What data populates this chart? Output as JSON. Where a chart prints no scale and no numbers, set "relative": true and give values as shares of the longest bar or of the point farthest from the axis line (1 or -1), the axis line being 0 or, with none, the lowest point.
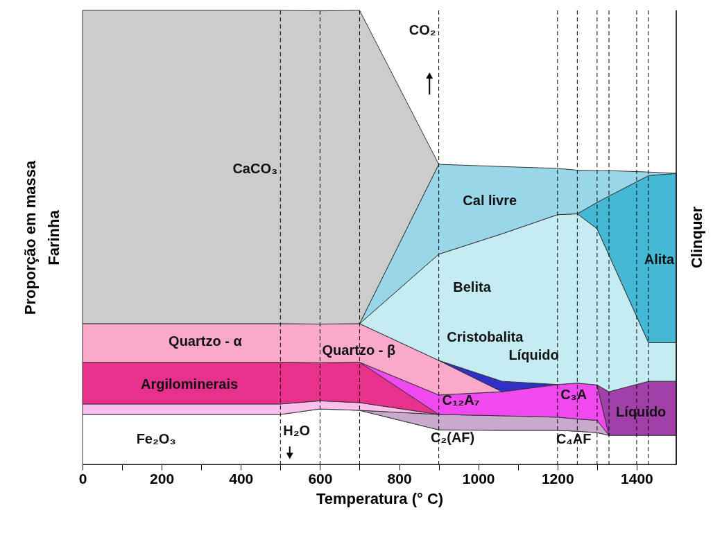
{
  "chart_data": {
    "type": "area",
    "stacked": true,
    "relative": true,
    "xlabel": "Temperatura (° C)",
    "ylabel": "Proporção em massa\nFarinha",
    "y2label": "Clinquer",
    "x": [
      0,
      500,
      600,
      700,
      900,
      1060,
      1200,
      1250,
      1300,
      1330,
      1430,
      1500
    ],
    "xlim": [
      0,
      1500
    ],
    "xticks": [
      0,
      {
        "value": 100,
        "label": null
      },
      200,
      {
        "value": 300,
        "label": null
      },
      400,
      {
        "value": 500,
        "label": null
      },
      600,
      {
        "value": 700,
        "label": null
      },
      800,
      {
        "value": 900,
        "label": null
      },
      1000,
      {
        "value": 1100,
        "label": null
      },
      1200,
      {
        "value": 1300,
        "label": null
      },
      1400
    ],
    "series": [
      {
        "color": "#ffffff",
        "values": [
          0.11,
          0.11,
          0.122,
          0.119,
          0.076,
          0.075,
          0.075,
          0.073,
          0.07,
          0.064,
          0.064,
          0.064
        ]
      },
      {
        "name": "C₂(AF)",
        "color": "#c9a9cc",
        "values": [
          null,
          null,
          null,
          0,
          0.034,
          0.032,
          0.029,
          0.027,
          0.027,
          0,
          null,
          null
        ]
      },
      {
        "name": "Fe₂O₃",
        "color": "#f9c0ec",
        "values": [
          0.023,
          0.023,
          0.018,
          0.017,
          0,
          null,
          null,
          null,
          null,
          null,
          null,
          null
        ]
      },
      {
        "name": "Argilominerais",
        "color": "#e8318c",
        "values": [
          0.092,
          0.092,
          0.084,
          0.089,
          0,
          null,
          null,
          null,
          null,
          null,
          null,
          null
        ]
      },
      {
        "name": "C₁₂A₇",
        "color": "#f049f0",
        "values": [
          null,
          null,
          null,
          0,
          0.043,
          0.053,
          0.072,
          0.079,
          0.078,
          0,
          null,
          null
        ]
      },
      {
        "name": "Líquido",
        "color": "#a040a8",
        "values": [
          null,
          null,
          null,
          null,
          null,
          null,
          null,
          null,
          0,
          0.096,
          0.119,
          0.119
        ]
      },
      {
        "name": "Quartzo - α",
        "color": "#f9a9c9",
        "values": [
          0.085,
          0.085,
          0.085,
          0.085,
          0.076,
          0,
          null,
          null,
          null,
          null,
          null,
          null
        ]
      },
      {
        "name": "Líquido",
        "color": "#3030c8",
        "values": [
          null,
          null,
          null,
          null,
          0,
          0.023,
          0,
          null,
          null,
          null,
          null,
          null
        ]
      },
      {
        "name": "Belita",
        "color": "#c5ecf3",
        "values": [
          null,
          null,
          null,
          0,
          0.234,
          0.325,
          0.374,
          0.373,
          0.344,
          0.301,
          0.085,
          0.085
        ]
      },
      {
        "name": "Alita",
        "color": "#45b8d5",
        "values": [
          null,
          null,
          null,
          null,
          null,
          null,
          null,
          0,
          0.058,
          0.13,
          0.368,
          0.373
        ]
      },
      {
        "name": "Cal livre",
        "color": "#99d7e8",
        "values": [
          null,
          null,
          null,
          0,
          0.198,
          0.148,
          0.102,
          0.096,
          0.07,
          0.056,
          0.008,
          0
        ]
      },
      {
        "name": "CaCO₃",
        "color": "#cccccc",
        "values": [
          0.69,
          0.69,
          0.69,
          0.69,
          0,
          null,
          null,
          null,
          null,
          null,
          null,
          null
        ]
      }
    ],
    "ref_lines": [
      {
        "axis": "x",
        "value": 500,
        "line_style": "dashed"
      },
      {
        "axis": "x",
        "value": 600,
        "line_style": "dashed"
      },
      {
        "axis": "x",
        "value": 700,
        "line_style": "dashed"
      },
      {
        "axis": "x",
        "value": 900,
        "line_style": "dashed"
      },
      {
        "axis": "x",
        "value": 1200,
        "line_style": "dashed"
      },
      {
        "axis": "x",
        "value": 1250,
        "line_style": "dashed"
      },
      {
        "axis": "x",
        "value": 1300,
        "line_style": "dashed"
      },
      {
        "axis": "x",
        "value": 1330,
        "line_style": "dashed"
      },
      {
        "axis": "x",
        "value": 1400,
        "line_style": "dashed"
      },
      {
        "axis": "x",
        "value": 1430,
        "line_style": "dashed"
      },
      {
        "axis": "x",
        "value": 1500,
        "line_style": "solid"
      }
    ],
    "annotations": [
      "Quartzo - β",
      "Cristobalita",
      "C₃A",
      "C₄AF",
      "H₂O",
      "CO₂"
    ]
  }
}
